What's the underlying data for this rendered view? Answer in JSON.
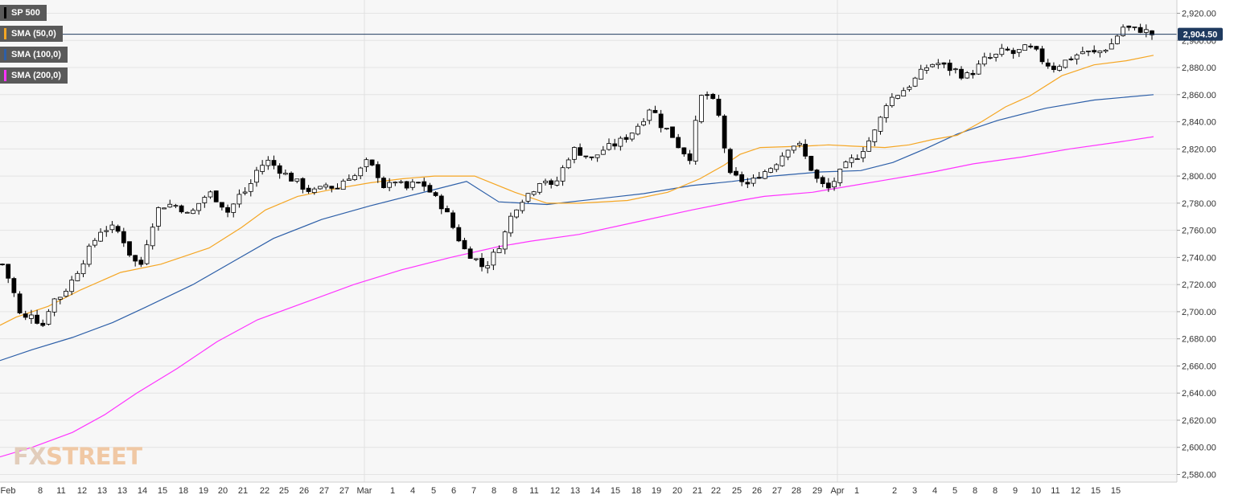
{
  "legend": [
    {
      "label": "SP 500",
      "color": "#000000"
    },
    {
      "label": "SMA (50,0)",
      "color": "#f5a623"
    },
    {
      "label": "SMA (100,0)",
      "color": "#2d5fa8"
    },
    {
      "label": "SMA (200,0)",
      "color": "#ff33ff"
    }
  ],
  "watermark": {
    "part1": "FX",
    "part2": "STREET"
  },
  "colors": {
    "background": "#f7f7f7",
    "grid": "#e4e4e4",
    "price_line": "#1f3a5f",
    "price_label_bg": "#1f3a5f",
    "sma50": "#f5a623",
    "sma100": "#2d5fa8",
    "sma200": "#ff33ff"
  },
  "chart_data": {
    "type": "candlestick",
    "symbol": "SP 500",
    "timeframe": "hourly",
    "ylim": [
      2572,
      2928
    ],
    "y_ticks": [
      "2,580.00",
      "2,600.00",
      "2,620.00",
      "2,640.00",
      "2,660.00",
      "2,680.00",
      "2,700.00",
      "2,720.00",
      "2,740.00",
      "2,760.00",
      "2,780.00",
      "2,800.00",
      "2,820.00",
      "2,840.00",
      "2,860.00",
      "2,880.00",
      "2,900.00",
      "2,920.00"
    ],
    "x_ticks": [
      "Feb",
      "8",
      "11",
      "12",
      "13",
      "13",
      "14",
      "15",
      "18",
      "19",
      "20",
      "21",
      "22",
      "25",
      "26",
      "27",
      "27",
      "Mar",
      "1",
      "4",
      "5",
      "6",
      "7",
      "8",
      "8",
      "11",
      "12",
      "13",
      "14",
      "15",
      "18",
      "19",
      "20",
      "21",
      "22",
      "25",
      "26",
      "27",
      "28",
      "29",
      "Apr",
      "1",
      "2",
      "3",
      "4",
      "5",
      "8",
      "8",
      "9",
      "10",
      "11",
      "12",
      "15",
      "15"
    ],
    "current_price": 2904.5,
    "current_price_label": "2,904.50",
    "price_path": [
      2735,
      2718,
      2692,
      2700,
      2688,
      2708,
      2712,
      2722,
      2735,
      2748,
      2760,
      2762,
      2758,
      2742,
      2732,
      2760,
      2778,
      2779,
      2778,
      2770,
      2780,
      2788,
      2782,
      2773,
      2785,
      2790,
      2806,
      2811,
      2806,
      2800,
      2795,
      2790,
      2788,
      2794,
      2790,
      2800,
      2800,
      2810,
      2804,
      2790,
      2797,
      2790,
      2795,
      2793,
      2784,
      2776,
      2760,
      2746,
      2740,
      2732,
      2742,
      2755,
      2775,
      2784,
      2790,
      2800,
      2790,
      2805,
      2820,
      2817,
      2812,
      2819,
      2822,
      2826,
      2832,
      2840,
      2852,
      2838,
      2832,
      2820,
      2814,
      2858,
      2860,
      2842,
      2800,
      2798,
      2793,
      2801,
      2805,
      2812,
      2822,
      2824,
      2810,
      2796,
      2790,
      2800,
      2809,
      2815,
      2824,
      2835,
      2855,
      2860,
      2865,
      2872,
      2880,
      2884,
      2880,
      2878,
      2873,
      2878,
      2886,
      2888,
      2893,
      2890,
      2894,
      2893,
      2884,
      2880,
      2884,
      2888,
      2892,
      2890,
      2893,
      2898,
      2910,
      2908,
      2908,
      2904.5
    ],
    "sma50": [
      [
        0,
        2690
      ],
      [
        20,
        2696
      ],
      [
        60,
        2704
      ],
      [
        100,
        2716
      ],
      [
        150,
        2729
      ],
      [
        200,
        2735
      ],
      [
        260,
        2747
      ],
      [
        300,
        2762
      ],
      [
        330,
        2775
      ],
      [
        370,
        2785
      ],
      [
        420,
        2791
      ],
      [
        460,
        2795
      ],
      [
        500,
        2798
      ],
      [
        540,
        2800
      ],
      [
        590,
        2800
      ],
      [
        640,
        2788
      ],
      [
        680,
        2780
      ],
      [
        720,
        2780
      ],
      [
        780,
        2782
      ],
      [
        830,
        2788
      ],
      [
        870,
        2798
      ],
      [
        900,
        2808
      ],
      [
        920,
        2816
      ],
      [
        945,
        2821
      ],
      [
        1000,
        2822
      ],
      [
        1030,
        2823
      ],
      [
        1060,
        2822
      ],
      [
        1100,
        2821
      ],
      [
        1130,
        2823
      ],
      [
        1160,
        2827
      ],
      [
        1190,
        2830
      ],
      [
        1220,
        2840
      ],
      [
        1250,
        2851
      ],
      [
        1280,
        2859
      ],
      [
        1320,
        2874
      ],
      [
        1360,
        2882
      ],
      [
        1400,
        2885
      ],
      [
        1434,
        2889
      ]
    ],
    "sma100": [
      [
        0,
        2664
      ],
      [
        40,
        2672
      ],
      [
        90,
        2681
      ],
      [
        140,
        2692
      ],
      [
        180,
        2703
      ],
      [
        240,
        2720
      ],
      [
        290,
        2737
      ],
      [
        340,
        2754
      ],
      [
        400,
        2768
      ],
      [
        460,
        2778
      ],
      [
        520,
        2787
      ],
      [
        580,
        2796
      ],
      [
        620,
        2781
      ],
      [
        680,
        2779
      ],
      [
        740,
        2783
      ],
      [
        800,
        2787
      ],
      [
        860,
        2793
      ],
      [
        910,
        2796
      ],
      [
        960,
        2800
      ],
      [
        1020,
        2803
      ],
      [
        1070,
        2804
      ],
      [
        1110,
        2810
      ],
      [
        1150,
        2820
      ],
      [
        1190,
        2831
      ],
      [
        1240,
        2841
      ],
      [
        1300,
        2850
      ],
      [
        1360,
        2856
      ],
      [
        1434,
        2860
      ]
    ],
    "sma200": [
      [
        0,
        2593
      ],
      [
        40,
        2600
      ],
      [
        90,
        2611
      ],
      [
        130,
        2624
      ],
      [
        170,
        2640
      ],
      [
        220,
        2658
      ],
      [
        270,
        2678
      ],
      [
        320,
        2694
      ],
      [
        380,
        2707
      ],
      [
        440,
        2720
      ],
      [
        500,
        2731
      ],
      [
        560,
        2740
      ],
      [
        620,
        2748
      ],
      [
        660,
        2752
      ],
      [
        720,
        2757
      ],
      [
        790,
        2766
      ],
      [
        860,
        2775
      ],
      [
        920,
        2782
      ],
      [
        950,
        2785
      ],
      [
        1010,
        2788
      ],
      [
        1050,
        2792
      ],
      [
        1100,
        2797
      ],
      [
        1160,
        2803
      ],
      [
        1210,
        2809
      ],
      [
        1270,
        2814
      ],
      [
        1330,
        2820
      ],
      [
        1390,
        2825
      ],
      [
        1434,
        2829
      ]
    ]
  }
}
